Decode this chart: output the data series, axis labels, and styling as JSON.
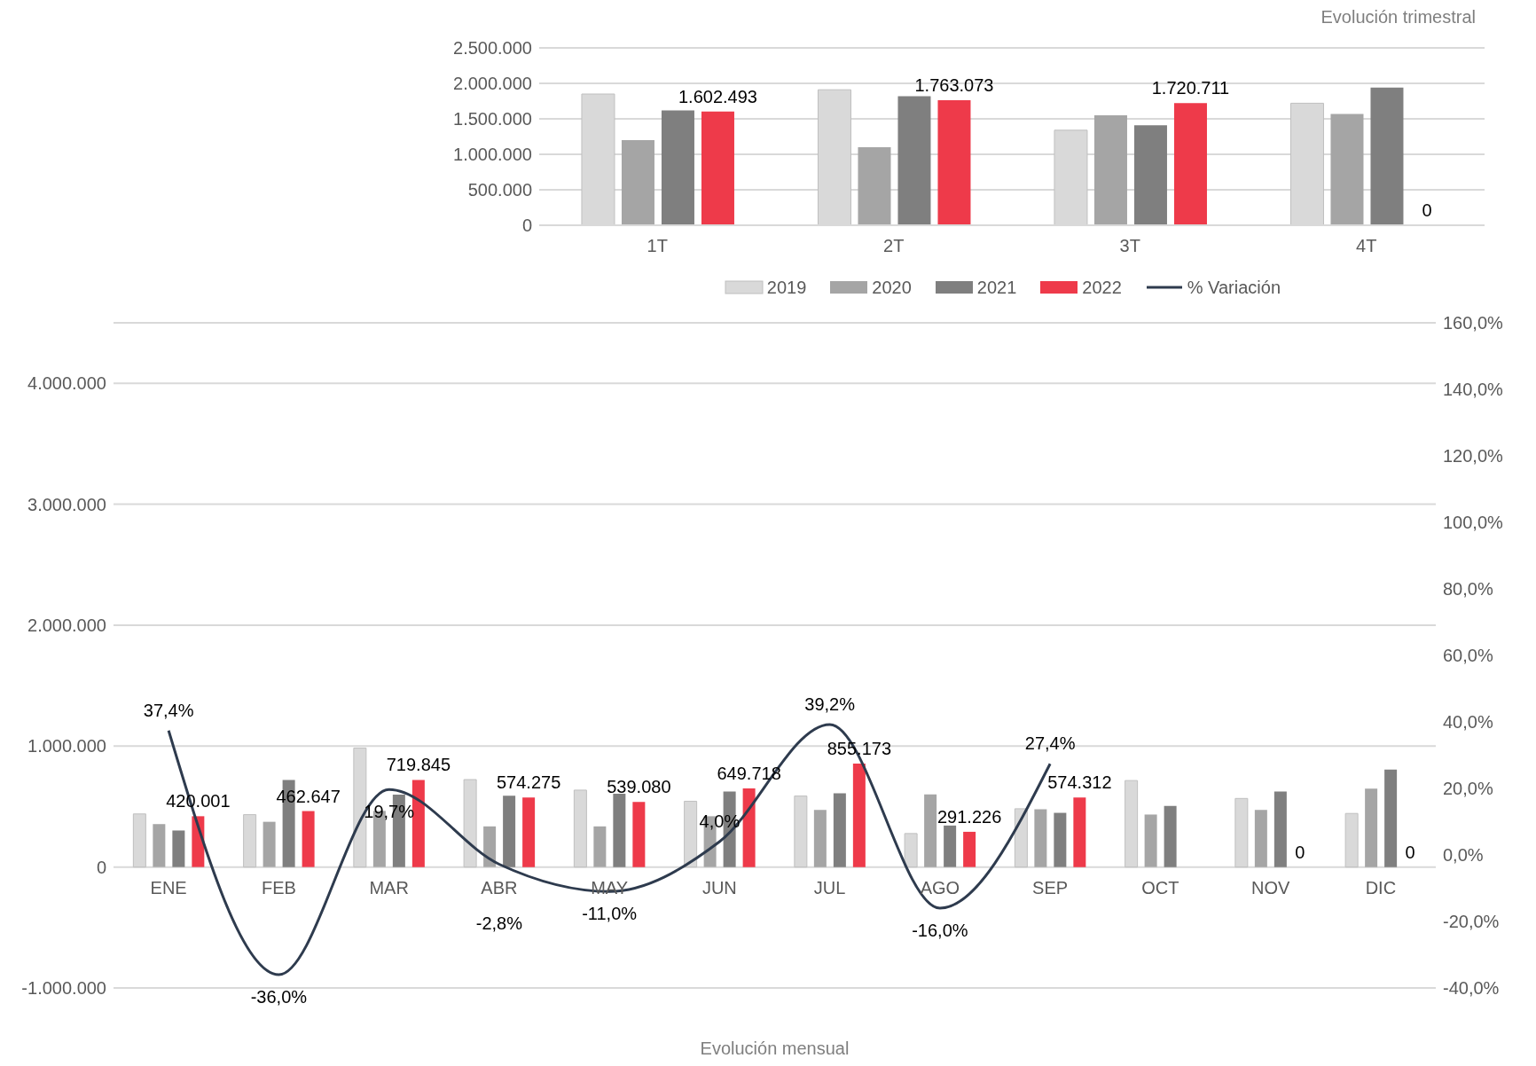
{
  "chart_data": [
    {
      "type": "bar",
      "title": "Evolución trimestral",
      "categories": [
        "1T",
        "2T",
        "3T",
        "4T"
      ],
      "series": [
        {
          "color": "#d9d9d9",
          "values": [
            1850000,
            1910000,
            1340000,
            1720000
          ]
        },
        {
          "color": "#a5a5a5",
          "values": [
            1200000,
            1100000,
            1550000,
            1570000
          ]
        },
        {
          "color": "#7f7f7f",
          "values": [
            1620000,
            1820000,
            1410000,
            1940000
          ]
        },
        {
          "color": "#ee3a4a",
          "values": [
            1602493,
            1763073,
            1720711,
            0
          ],
          "value_labels": [
            "1.602.493",
            "1.763.073",
            "1.720.711",
            "0"
          ]
        }
      ],
      "ylim": [
        0,
        2500000
      ],
      "yticks": [
        0,
        {
          "value": 500000,
          "label": "500.000"
        },
        {
          "value": 1000000,
          "label": "1.000.000"
        },
        {
          "value": 1500000,
          "label": "1.500.000"
        },
        {
          "value": 2000000,
          "label": "2.000.000"
        },
        {
          "value": 2500000,
          "label": "2.500.000"
        }
      ],
      "grid": "y",
      "legend": false
    },
    {
      "type": "bar",
      "xlabel": "Evolución mensual",
      "categories": [
        "ENE",
        "FEB",
        "MAR",
        "ABR",
        "MAY",
        "JUN",
        "JUL",
        "AGO",
        "SEP",
        "OCT",
        "NOV",
        "DIC"
      ],
      "series": [
        {
          "name": "2019",
          "color": "#d9d9d9",
          "values": [
            439000,
            433000,
            984000,
            723000,
            636000,
            544000,
            587000,
            277000,
            482000,
            715000,
            567000,
            443000
          ]
        },
        {
          "name": "2020",
          "color": "#a5a5a5",
          "values": [
            355000,
            374000,
            464000,
            336000,
            336000,
            420000,
            472000,
            601000,
            477000,
            434000,
            472000,
            649000
          ]
        },
        {
          "name": "2021",
          "color": "#7f7f7f",
          "values": [
            302000,
            720000,
            598000,
            589000,
            606000,
            625000,
            610000,
            343000,
            448000,
            506000,
            625000,
            806000
          ]
        },
        {
          "name": "2022",
          "color": "#ee3a4a",
          "values": [
            420001,
            462647,
            719845,
            574275,
            539080,
            649718,
            855173,
            291226,
            574312,
            null,
            0,
            0
          ],
          "value_labels": [
            "420.001",
            "462.647",
            "719.845",
            "574.275",
            "539.080",
            "649.718",
            "855.173",
            "291.226",
            "574.312",
            null,
            "0",
            "0"
          ]
        },
        {
          "name": "% Variación",
          "type": "line",
          "axis": "y2",
          "color": "#2e3b4e",
          "values": [
            37.4,
            -36.0,
            19.7,
            -2.8,
            -11.0,
            4.0,
            39.2,
            -16.0,
            27.4,
            null,
            null,
            null
          ],
          "value_labels": [
            "37,4%",
            "-36,0%",
            "19,7%",
            "-2,8%",
            "-11,0%",
            "4,0%",
            "39,2%",
            "-16,0%",
            "27,4%",
            null,
            null,
            null
          ]
        }
      ],
      "ylim": [
        -1000000,
        4500000
      ],
      "yticks": [
        {
          "value": -1000000,
          "label": "-1.000.000"
        },
        0,
        {
          "value": 1000000,
          "label": "1.000.000"
        },
        {
          "value": 2000000,
          "label": "2.000.000"
        },
        {
          "value": 3000000,
          "label": "3.000.000"
        },
        {
          "value": 4000000,
          "label": "4.000.000"
        }
      ],
      "y2lim": [
        -40,
        160
      ],
      "y2ticks": [
        {
          "value": -40,
          "label": "-40,0%"
        },
        {
          "value": -20,
          "label": "-20,0%"
        },
        {
          "value": 0,
          "label": "0,0%"
        },
        {
          "value": 20,
          "label": "20,0%"
        },
        {
          "value": 40,
          "label": "40,0%"
        },
        {
          "value": 60,
          "label": "60,0%"
        },
        {
          "value": 80,
          "label": "80,0%"
        },
        {
          "value": 100,
          "label": "100,0%"
        },
        {
          "value": 120,
          "label": "120,0%"
        },
        {
          "value": 140,
          "label": "140,0%"
        },
        {
          "value": 160,
          "label": "160,0%"
        }
      ],
      "grid": "y",
      "legend": "top right",
      "marker": "none",
      "line_style": "solid"
    }
  ]
}
